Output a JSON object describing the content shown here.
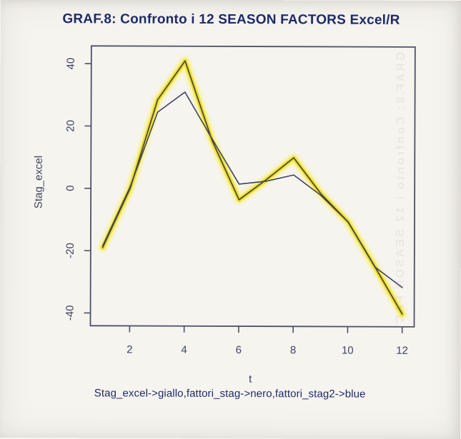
{
  "title": "GRAF.8: Confronto i 12 SEASON FACTORS Excel/R",
  "chart_data": {
    "type": "line",
    "title": "GRAF.8: Confronto i 12 SEASON FACTORS Excel/R",
    "subtitle": "Stag_excel->giallo,fattori_stag->nero,fattori_stag2->blue",
    "xlabel": "t",
    "ylabel": "Stag_excel",
    "x": [
      1,
      2,
      3,
      4,
      5,
      6,
      7,
      8,
      9,
      10,
      11,
      12
    ],
    "x_ticks": [
      2,
      4,
      6,
      8,
      10,
      12
    ],
    "y_ticks": [
      -40,
      -20,
      0,
      20,
      40
    ],
    "xlim": [
      0.56,
      12.44
    ],
    "ylim": [
      -44.1,
      45.7
    ],
    "grid": false,
    "legend_position": "none",
    "series": [
      {
        "name": "Stag_excel",
        "color_name": "giallo",
        "color": "#f0e231",
        "halo_color": "#f9f194",
        "line_width": 6.5,
        "values": [
          -19,
          0,
          28.5,
          41,
          15.5,
          -3.5,
          3,
          10,
          -1.5,
          -10.5,
          -25,
          -40
        ]
      },
      {
        "name": "fattori_stag",
        "color_name": "nero",
        "color": "#4b4a3f",
        "line_width": 1.8,
        "values": [
          -19,
          0,
          28.5,
          41,
          15.5,
          -3.5,
          3,
          10,
          -1.5,
          -10.5,
          -25,
          -40
        ]
      },
      {
        "name": "fattori_stag2",
        "color_name": "blue",
        "color": "#3d4266",
        "line_width": 1.6,
        "values": [
          -18.5,
          0.5,
          24.5,
          31,
          16,
          1.5,
          2.5,
          4.5,
          -2,
          -10.5,
          -25,
          -31.5
        ]
      }
    ]
  },
  "artifact": {
    "bleedthrough_text": "GRAF.8: Confronto i 12 SEASON FACTORS Excel/R"
  },
  "colors": {
    "paper": "#f6f4ef",
    "axis": "#4d5168",
    "title_text": "#1d2a6b",
    "tick_text": "#3e455e"
  }
}
